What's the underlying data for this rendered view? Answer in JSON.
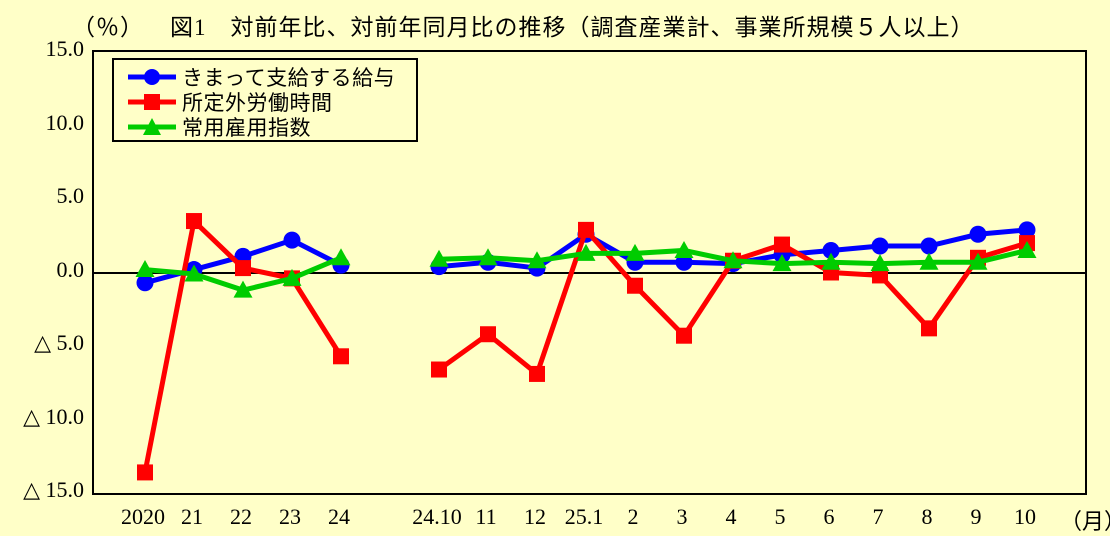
{
  "title": {
    "unit": "（％）",
    "text": "図1　対前年比、対前年同月比の推移（調査産業計、事業所規模５人以上）"
  },
  "colors": {
    "background": "#FFFFC8",
    "frame": "#000000",
    "salary_series": "#0000FF",
    "overtime_series": "#FF0000",
    "employment_series": "#00CC00"
  },
  "y_axis": {
    "tick_labels": [
      "15.0",
      "10.0",
      "5.0",
      "0.0",
      "△ 5.0",
      "△ 10.0",
      "△ 15.0"
    ],
    "tick_values": [
      15,
      10,
      5,
      0,
      -5,
      -10,
      -15
    ],
    "negative_prefix": "△",
    "min": -15,
    "max": 15
  },
  "x_axis": {
    "annual_labels": [
      "2020",
      "21",
      "22",
      "23",
      "24"
    ],
    "monthly_labels": [
      "24.10",
      "11",
      "12",
      "25.1",
      "2",
      "3",
      "4",
      "5",
      "6",
      "7",
      "8",
      "9",
      "10"
    ],
    "unit_label": "（月）"
  },
  "legend": {
    "items": [
      {
        "label": "きまって支給する給与",
        "color": "#0000FF",
        "marker": "circle"
      },
      {
        "label": "所定外労働時間",
        "color": "#FF0000",
        "marker": "square"
      },
      {
        "label": "常用雇用指数",
        "color": "#00CC00",
        "marker": "triangle"
      }
    ]
  },
  "chart_data": {
    "type": "line",
    "title": "図1　対前年比、対前年同月比の推移（調査産業計、事業所規模５人以上）",
    "ylabel": "（％）",
    "xlabel": "（月）",
    "ylim": [
      -15,
      15
    ],
    "grid": false,
    "legend_position": "top-left-inside",
    "categories_annual": [
      "2020",
      "21",
      "22",
      "23",
      "24"
    ],
    "categories_monthly": [
      "24.10",
      "11",
      "12",
      "25.1",
      "2",
      "3",
      "4",
      "5",
      "6",
      "7",
      "8",
      "9",
      "10"
    ],
    "series": [
      {
        "name": "きまって支給する給与",
        "color": "#0000FF",
        "marker": "circle",
        "annual": [
          -0.7,
          0.2,
          1.1,
          2.2,
          0.5
        ],
        "monthly": [
          0.4,
          0.7,
          0.3,
          2.6,
          0.7,
          0.7,
          0.6,
          1.2,
          1.5,
          1.8,
          1.8,
          2.6,
          2.9
        ]
      },
      {
        "name": "所定外労働時間",
        "color": "#FF0000",
        "marker": "square",
        "annual": [
          -13.6,
          3.5,
          0.3,
          -0.4,
          -5.7
        ],
        "monthly": [
          -6.6,
          -4.2,
          -6.9,
          2.9,
          -0.9,
          -4.3,
          0.8,
          1.9,
          0.0,
          -0.2,
          -3.8,
          1.0,
          2.0
        ]
      },
      {
        "name": "常用雇用指数",
        "color": "#00CC00",
        "marker": "triangle",
        "annual": [
          0.2,
          -0.1,
          -1.2,
          -0.4,
          1.0
        ],
        "monthly": [
          0.9,
          1.0,
          0.8,
          1.3,
          1.3,
          1.5,
          0.8,
          0.6,
          0.7,
          0.6,
          0.7,
          0.7,
          1.5
        ]
      }
    ]
  }
}
